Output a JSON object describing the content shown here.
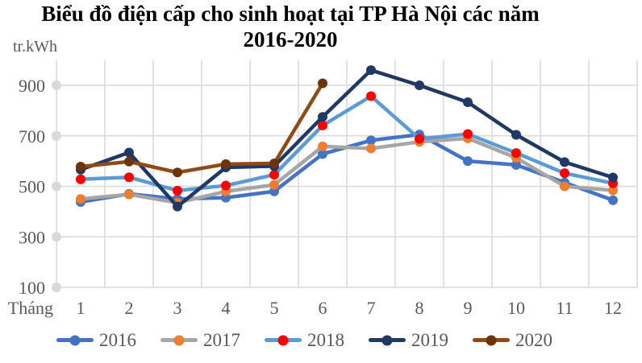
{
  "title": {
    "line1": "Biểu đồ điện cấp cho sinh hoạt tại TP Hà Nội các năm",
    "line2": "2016-2020"
  },
  "axes": {
    "y_unit": "tr.kWh"
  },
  "colors": {
    "grid": "#D9D9D9",
    "axis_text": "#595959",
    "title_text": "#000000"
  },
  "chart_data": {
    "type": "line",
    "title": "Biểu đồ điện cấp cho sinh hoạt tại TP Hà Nội các năm 2016-2020",
    "xlabel": "Tháng",
    "ylabel": "tr.kWh",
    "x": [
      1,
      2,
      3,
      4,
      5,
      6,
      7,
      8,
      9,
      10,
      11,
      12
    ],
    "ylim": [
      100,
      900
    ],
    "yticks": [
      100,
      300,
      500,
      700,
      900
    ],
    "grid": true,
    "legend_position": "bottom",
    "series": [
      {
        "name": "2016",
        "line_color": "#4472C4",
        "marker_color": "#4472C4",
        "values": [
          438,
          470,
          450,
          455,
          480,
          628,
          682,
          705,
          600,
          585,
          515,
          445
        ]
      },
      {
        "name": "2017",
        "line_color": "#A6A6A6",
        "marker_color": "#ED7D31",
        "values": [
          450,
          468,
          435,
          480,
          506,
          658,
          650,
          676,
          690,
          613,
          500,
          484
        ]
      },
      {
        "name": "2018",
        "line_color": "#5B9BD5",
        "marker_color": "#FF0000",
        "values": [
          528,
          536,
          483,
          503,
          546,
          741,
          857,
          688,
          707,
          632,
          552,
          512
        ]
      },
      {
        "name": "2019",
        "line_color": "#1F3864",
        "marker_color": "#1F3864",
        "values": [
          566,
          634,
          420,
          575,
          580,
          775,
          960,
          900,
          833,
          704,
          596,
          535
        ]
      },
      {
        "name": "2020",
        "line_color": "#8E4B17",
        "marker_color": "#6D3309",
        "values": [
          578,
          598,
          555,
          588,
          591,
          908
        ]
      }
    ]
  }
}
